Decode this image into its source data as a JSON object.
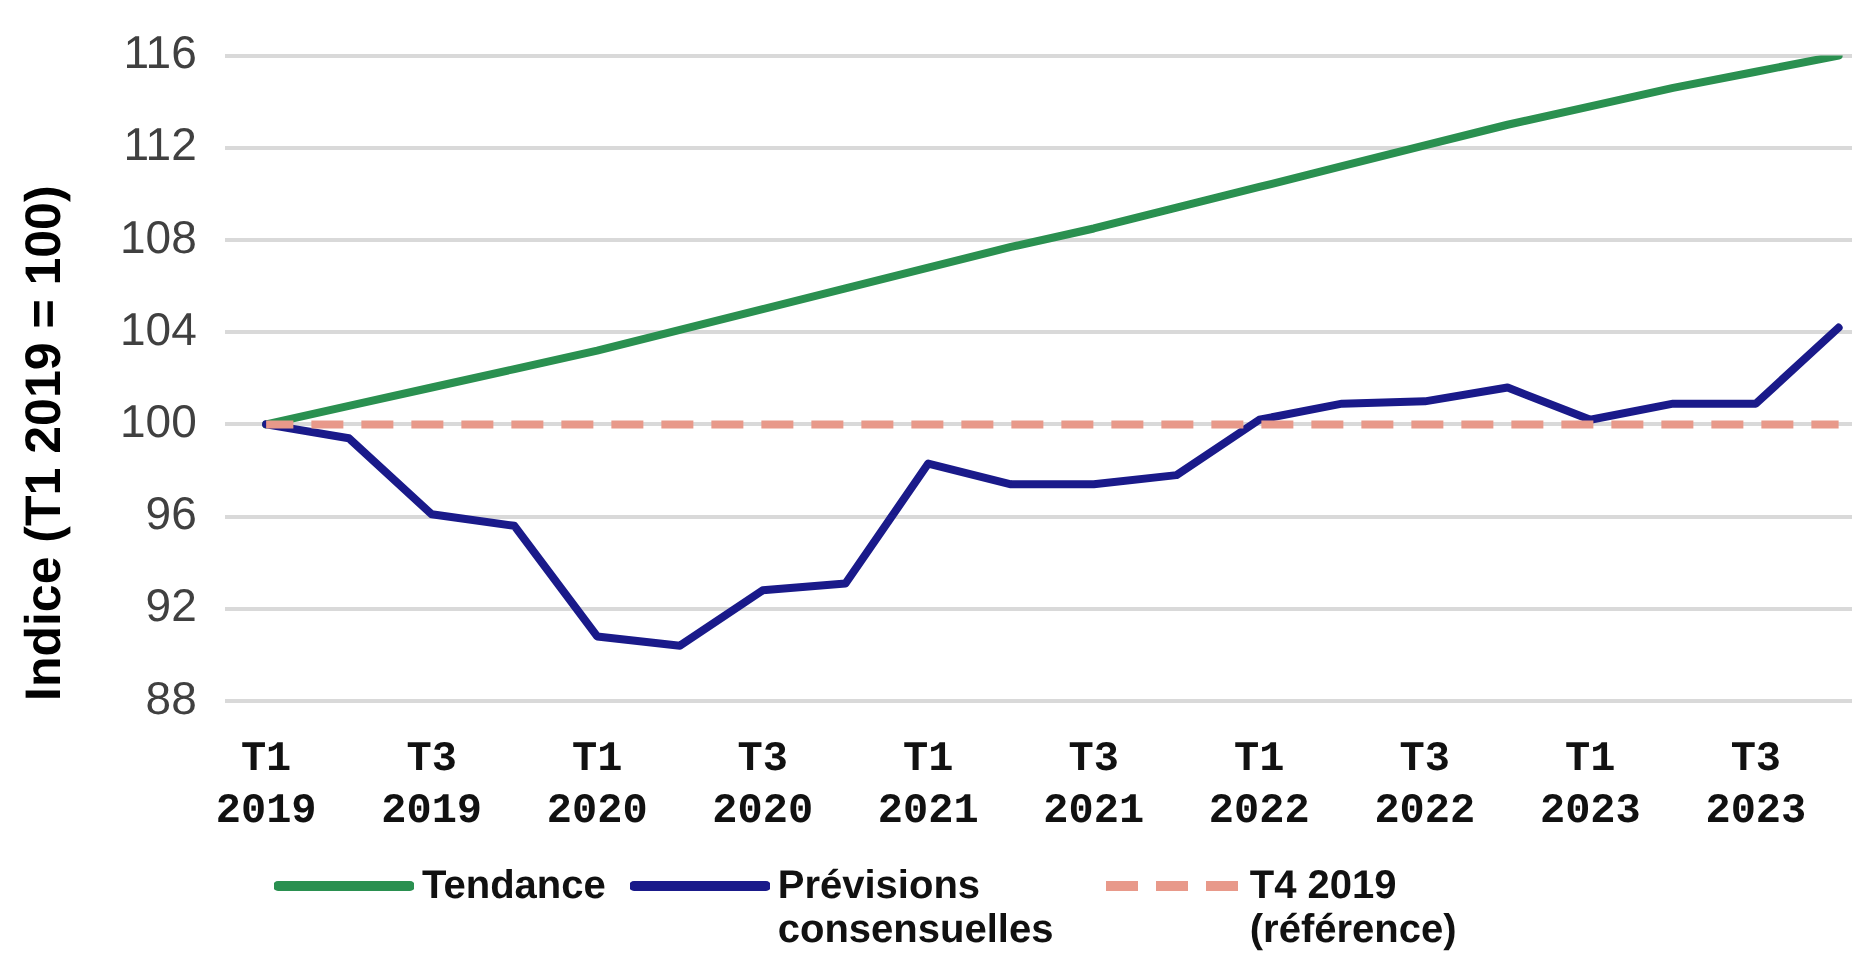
{
  "chart_data": {
    "type": "line",
    "ylabel": "Indice (T1 2019 = 100)",
    "categories": [
      "T1 2019",
      null,
      "T3 2019",
      null,
      "T1 2020",
      null,
      "T3 2020",
      null,
      "T1 2021",
      null,
      "T3 2021",
      null,
      "T1 2022",
      null,
      "T3 2022",
      null,
      "T1 2023",
      null,
      "T3 2023",
      null
    ],
    "series": [
      {
        "name": "Tendance",
        "color": "#2a9050",
        "values": [
          100,
          100.8,
          101.6,
          102.4,
          103.2,
          104.1,
          105.0,
          105.9,
          106.8,
          107.7,
          108.5,
          109.4,
          110.3,
          111.2,
          112.1,
          113.0,
          113.8,
          114.6,
          115.3,
          116.0
        ]
      },
      {
        "name": "Prévisions consensuelles",
        "color": "#1a1a8a",
        "values": [
          100,
          99.4,
          96.1,
          95.6,
          90.8,
          90.4,
          92.8,
          93.1,
          98.3,
          97.4,
          97.4,
          97.8,
          100.2,
          100.9,
          101.0,
          101.6,
          100.2,
          100.9,
          100.9,
          104.2
        ]
      },
      {
        "name": "T4 2019 (référence)",
        "color": "#e8998a",
        "line_style": "dashed",
        "values": [
          100,
          100,
          100,
          100,
          100,
          100,
          100,
          100,
          100,
          100,
          100,
          100,
          100,
          100,
          100,
          100,
          100,
          100,
          100,
          100
        ]
      }
    ],
    "ylim": [
      88,
      116
    ],
    "yticks": [
      88,
      92,
      96,
      100,
      104,
      108,
      112,
      116
    ],
    "grid": "y",
    "legend": "bottom",
    "marker": "none",
    "line_style": "solid"
  }
}
